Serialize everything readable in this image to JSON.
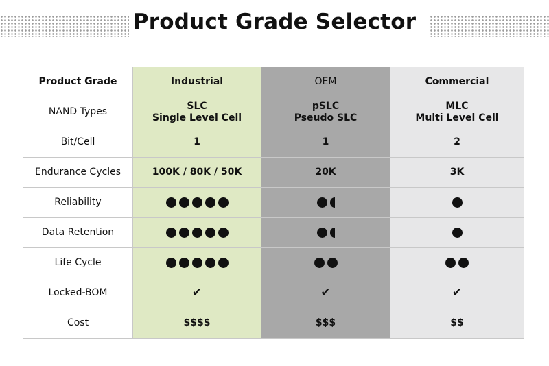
{
  "title": "Product Grade Selector",
  "table": {
    "header": {
      "label": "Product Grade",
      "industrial": "Industrial",
      "oem": "OEM",
      "commercial": "Commercial"
    },
    "nand": {
      "label": "NAND Types",
      "industrial": [
        "SLC",
        "Single Level Cell"
      ],
      "oem": [
        "pSLC",
        "Pseudo SLC"
      ],
      "commercial": [
        "MLC",
        "Multi Level Cell"
      ]
    },
    "bit_cell": {
      "label": "Bit/Cell",
      "industrial": "1",
      "oem": "1",
      "commercial": "2"
    },
    "endurance": {
      "label": "Endurance Cycles",
      "industrial": "100K / 80K / 50K",
      "oem": "20K",
      "commercial": "3K"
    },
    "reliability": {
      "label": "Reliability",
      "industrial": 5,
      "oem": 1.5,
      "commercial": 1
    },
    "retention": {
      "label": "Data Retention",
      "industrial": 5,
      "oem": 1.5,
      "commercial": 1
    },
    "life_cycle": {
      "label": "Life Cycle",
      "industrial": 5,
      "oem": 2,
      "commercial": 2
    },
    "locked_bom": {
      "label": "Locked-BOM",
      "industrial": "✔",
      "oem": "✔",
      "commercial": "✔"
    },
    "cost": {
      "label": "Cost",
      "industrial": "$$$$",
      "oem": "$$$",
      "commercial": "$$"
    }
  },
  "colors": {
    "industrial": "#dfe9c4",
    "oem": "#a8a8a8",
    "commercial": "#e7e7e8"
  },
  "icons": {
    "rating": "filled-circle",
    "check": "check-mark"
  }
}
